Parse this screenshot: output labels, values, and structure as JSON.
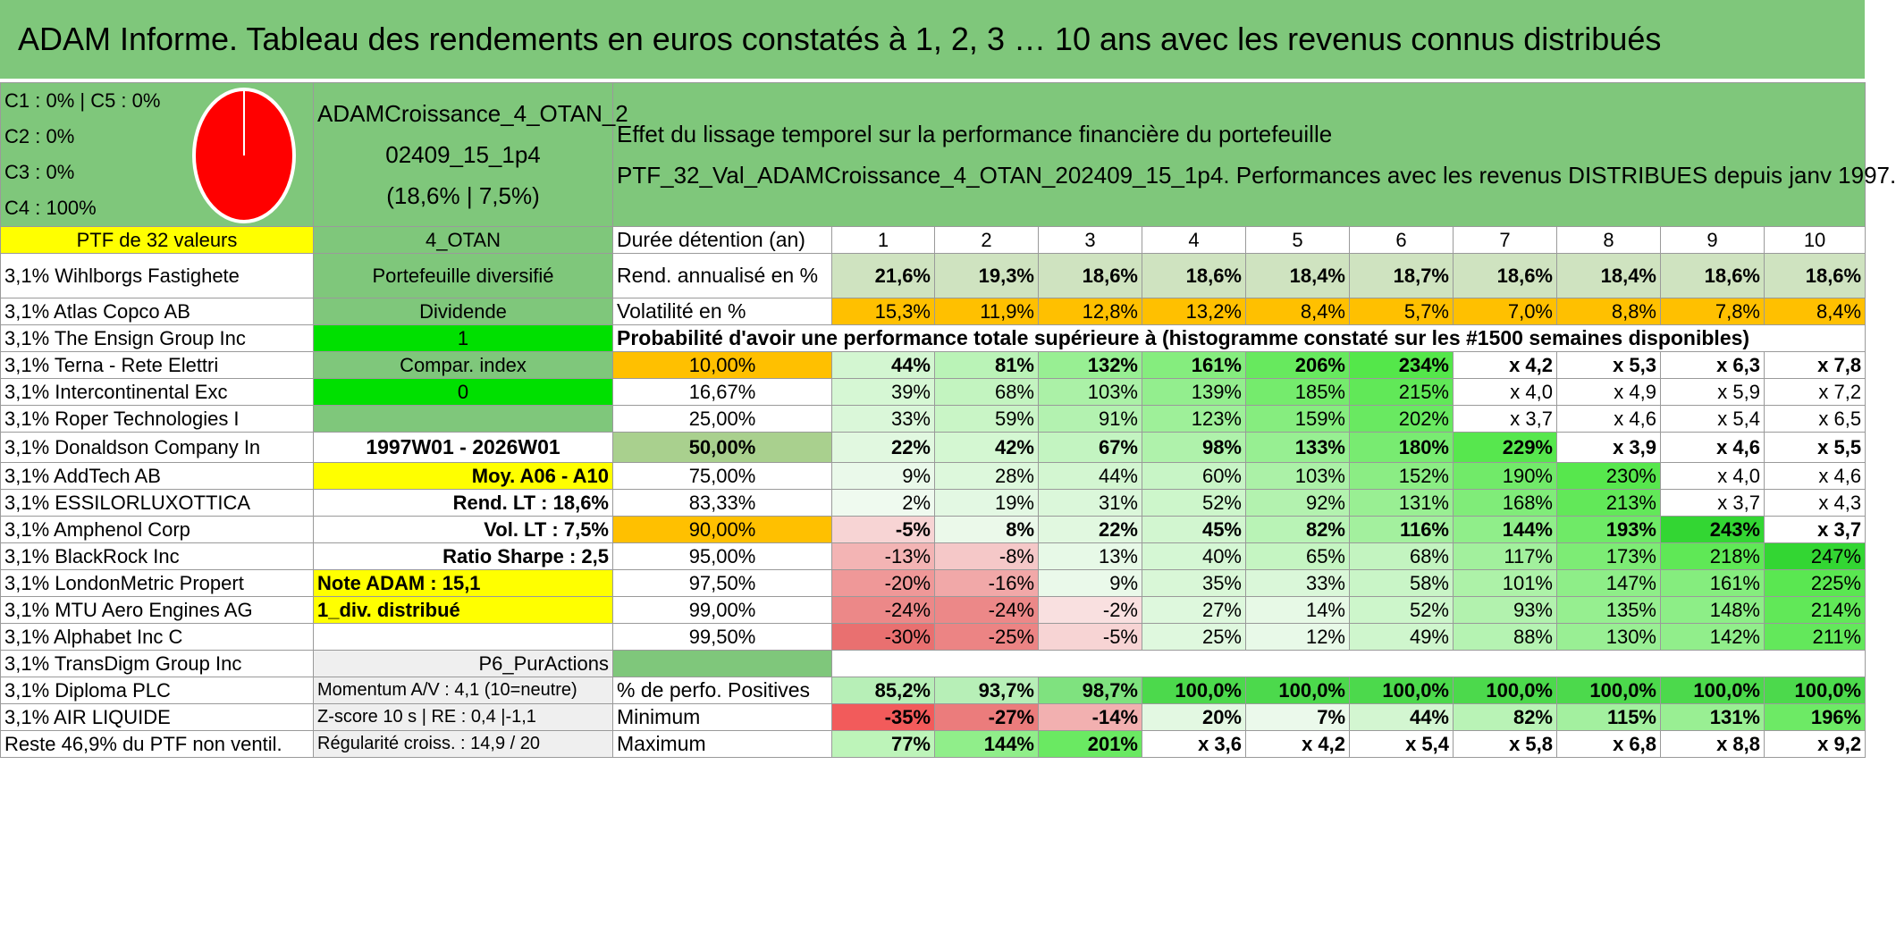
{
  "title": "ADAM Informe. Tableau des rendements en euros constatés à 1, 2, 3 … 10 ans avec les revenus connus distribués",
  "legend": [
    "C1 : 0% | C5 : 0%",
    "C2 : 0%",
    "C3 : 0%",
    "C4 : 100%"
  ],
  "pie_colors": {
    "fill": "#ff0000",
    "stroke": "#ffffff"
  },
  "portfolio": {
    "name_line1": "ADAMCroissance_4_OTAN_2",
    "name_line2": "02409_15_1p4",
    "name_line3": "(18,6% | 7,5%)",
    "effect_title": "Effet du lissage temporel sur la performance financière du portefeuille",
    "effect_subtitle": "PTF_32_Val_ADAMCroissance_4_OTAN_202409_15_1p4. Performances avec les revenus DISTRIBUES depuis janv 1997.",
    "ptf_label": "PTF de 32 valeurs",
    "code": "4_OTAN"
  },
  "holdings": [
    "3,1% Wihlborgs Fastighete",
    "3,1% Atlas Copco AB",
    "3,1% The Ensign Group Inc",
    "3,1% Terna - Rete Elettri",
    "3,1% Intercontinental Exc",
    "3,1% Roper Technologies I",
    "3,1% Donaldson Company In",
    "3,1% AddTech AB",
    "3,1% ESSILORLUXOTTICA",
    "3,1% Amphenol Corp",
    "3,1% BlackRock Inc",
    "3,1% LondonMetric Propert",
    "3,1% MTU Aero Engines AG",
    "3,1% Alphabet Inc C",
    "3,1% TransDigm Group Inc",
    "3,1% Diploma PLC",
    "3,1% AIR LIQUIDE",
    "Reste 46,9% du PTF non ventil."
  ],
  "info": {
    "diversified": "Portefeuille diversifié",
    "dividend": "Dividende",
    "one": "1",
    "compar": "Compar. index",
    "zero": "0",
    "period": "1997W01 - 2026W01",
    "moy": "Moy. A06 - A10",
    "rend_lt": "Rend. LT : 18,6%",
    "vol_lt": "Vol. LT : 7,5%",
    "sharpe": "Ratio Sharpe : 2,5",
    "note": "Note ADAM : 15,1",
    "div": "1_div. distribué",
    "p6": "P6_PurActions",
    "momentum": "Momentum A/V : 4,1 (10=neutre)",
    "zscore": "Z-score 10 s | RE : 0,4 |-1,1",
    "regularity": "Régularité croiss. : 14,9 / 20"
  },
  "stats": {
    "duration_label": "Durée détention (an)",
    "years": [
      "1",
      "2",
      "3",
      "4",
      "5",
      "6",
      "7",
      "8",
      "9",
      "10"
    ],
    "rend_label": "Rend. annualisé en %",
    "rend": [
      "21,6%",
      "19,3%",
      "18,6%",
      "18,6%",
      "18,4%",
      "18,7%",
      "18,6%",
      "18,4%",
      "18,6%",
      "18,6%"
    ],
    "vol_label": "Volatilité en %",
    "vol": [
      "15,3%",
      "11,9%",
      "12,8%",
      "13,2%",
      "8,4%",
      "5,7%",
      "7,0%",
      "8,8%",
      "7,8%",
      "8,4%"
    ],
    "prob_title": "Probabilité d'avoir une performance totale supérieure à (histogramme constaté sur les #1500 semaines disponibles)",
    "prob_rows": [
      {
        "pct": "10,00%",
        "vals": [
          "44%",
          "81%",
          "132%",
          "161%",
          "206%",
          "234%",
          "x 4,2",
          "x 5,3",
          "x 6,3",
          "x 7,8"
        ]
      },
      {
        "pct": "16,67%",
        "vals": [
          "39%",
          "68%",
          "103%",
          "139%",
          "185%",
          "215%",
          "x 4,0",
          "x 4,9",
          "x 5,9",
          "x 7,2"
        ]
      },
      {
        "pct": "25,00%",
        "vals": [
          "33%",
          "59%",
          "91%",
          "123%",
          "159%",
          "202%",
          "x 3,7",
          "x 4,6",
          "x 5,4",
          "x 6,5"
        ]
      },
      {
        "pct": "50,00%",
        "vals": [
          "22%",
          "42%",
          "67%",
          "98%",
          "133%",
          "180%",
          "229%",
          "x 3,9",
          "x 4,6",
          "x 5,5"
        ]
      },
      {
        "pct": "75,00%",
        "vals": [
          "9%",
          "28%",
          "44%",
          "60%",
          "103%",
          "152%",
          "190%",
          "230%",
          "x 4,0",
          "x 4,6"
        ]
      },
      {
        "pct": "83,33%",
        "vals": [
          "2%",
          "19%",
          "31%",
          "52%",
          "92%",
          "131%",
          "168%",
          "213%",
          "x 3,7",
          "x 4,3"
        ]
      },
      {
        "pct": "90,00%",
        "vals": [
          "-5%",
          "8%",
          "22%",
          "45%",
          "82%",
          "116%",
          "144%",
          "193%",
          "243%",
          "x 3,7"
        ]
      },
      {
        "pct": "95,00%",
        "vals": [
          "-13%",
          "-8%",
          "13%",
          "40%",
          "65%",
          "68%",
          "117%",
          "173%",
          "218%",
          "247%"
        ]
      },
      {
        "pct": "97,50%",
        "vals": [
          "-20%",
          "-16%",
          "9%",
          "35%",
          "33%",
          "58%",
          "101%",
          "147%",
          "161%",
          "225%"
        ]
      },
      {
        "pct": "99,00%",
        "vals": [
          "-24%",
          "-24%",
          "-2%",
          "27%",
          "14%",
          "52%",
          "93%",
          "135%",
          "148%",
          "214%"
        ]
      },
      {
        "pct": "99,50%",
        "vals": [
          "-30%",
          "-25%",
          "-5%",
          "25%",
          "12%",
          "49%",
          "88%",
          "130%",
          "142%",
          "211%"
        ]
      }
    ],
    "positive_label": "% de perfo. Positives",
    "positive": [
      "85,2%",
      "93,7%",
      "98,7%",
      "100,0%",
      "100,0%",
      "100,0%",
      "100,0%",
      "100,0%",
      "100,0%",
      "100,0%"
    ],
    "min_label": "Minimum",
    "min": [
      "-35%",
      "-27%",
      "-14%",
      "20%",
      "7%",
      "44%",
      "82%",
      "115%",
      "131%",
      "196%"
    ],
    "max_label": "Maximum",
    "max": [
      "77%",
      "144%",
      "201%",
      "x 3,6",
      "x 4,2",
      "x 5,4",
      "x 5,8",
      "x 6,8",
      "x 8,8",
      "x 9,2"
    ]
  }
}
